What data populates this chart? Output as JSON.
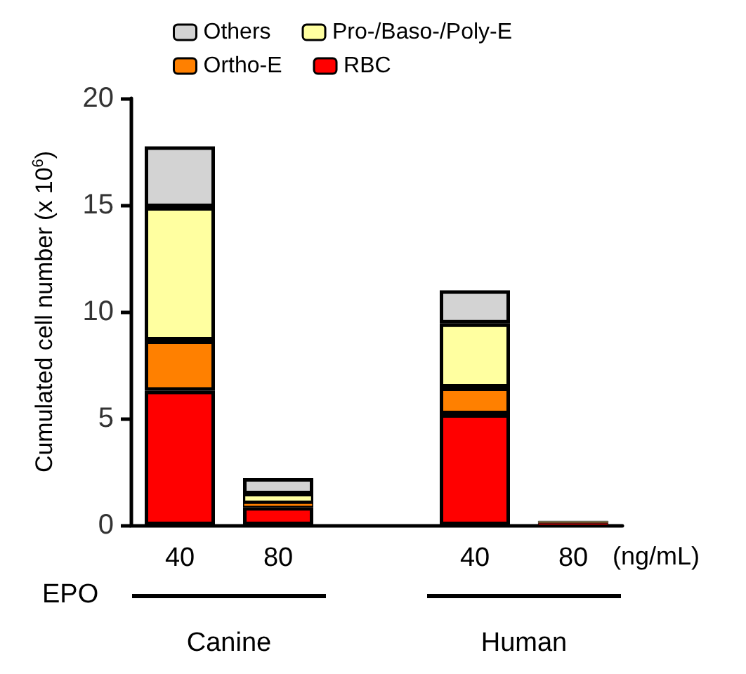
{
  "chart_data": {
    "type": "bar",
    "stacked": true,
    "ylabel": "Cumulated cell number (x 10$^{6}$)",
    "categories": [
      "40",
      "80",
      null,
      "40",
      "80"
    ],
    "series": [
      {
        "name": "RBC",
        "color": "#ff0000",
        "values": [
          6.3,
          0.85,
          null,
          5.2,
          0.1
        ]
      },
      {
        "name": "Ortho-E",
        "color": "#ff8000",
        "values": [
          2.35,
          0.2,
          null,
          1.25,
          0.05
        ]
      },
      {
        "name": "Pro-/Baso-/Poly-E",
        "color": "#ffffa0",
        "values": [
          6.25,
          0.4,
          null,
          3.0,
          0.05
        ]
      },
      {
        "name": "Others",
        "color": "#d3d3d3",
        "values": [
          2.85,
          0.75,
          null,
          1.55,
          null
        ]
      }
    ],
    "ylim": [
      0,
      20
    ],
    "yticks": [
      0,
      5,
      10,
      15,
      20
    ],
    "grid": false,
    "legend": "top",
    "annotations": [
      "EPO",
      "(ng/mL)",
      "Canine",
      "Human"
    ]
  }
}
